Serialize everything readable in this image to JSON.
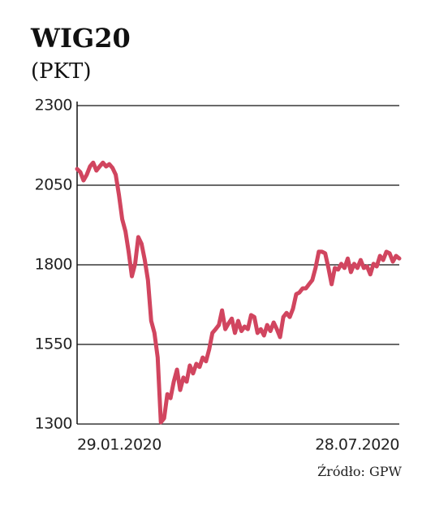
{
  "chart_data": {
    "type": "line",
    "title": "WIG20",
    "subtitle": "(PKT)",
    "source": "Źródło: GPW",
    "categories": [
      "29.01.2020",
      null,
      null,
      null,
      null,
      null,
      null,
      null,
      null,
      null,
      null,
      null,
      null,
      null,
      null,
      null,
      null,
      null,
      null,
      null,
      null,
      null,
      null,
      null,
      null,
      null,
      null,
      null,
      null,
      null,
      null,
      null,
      null,
      null,
      null,
      null,
      null,
      null,
      null,
      null,
      null,
      null,
      null,
      null,
      null,
      null,
      null,
      null,
      null,
      null,
      null,
      null,
      null,
      null,
      null,
      null,
      null,
      null,
      null,
      null,
      null,
      null,
      null,
      null,
      null,
      null,
      null,
      null,
      null,
      null,
      null,
      null,
      null,
      null,
      null,
      null,
      null,
      null,
      null,
      null,
      null,
      null,
      null,
      null,
      null,
      null,
      null,
      null,
      null,
      null,
      null,
      null,
      null,
      null,
      null,
      null,
      null,
      null,
      null,
      null,
      "28.07.2020"
    ],
    "values": [
      2101,
      2091,
      2065,
      2083,
      2109,
      2121,
      2096,
      2109,
      2121,
      2109,
      2116,
      2104,
      2083,
      2019,
      1943,
      1905,
      1841,
      1764,
      1803,
      1887,
      1866,
      1815,
      1752,
      1624,
      1586,
      1509,
      1305,
      1318,
      1394,
      1381,
      1433,
      1471,
      1407,
      1446,
      1433,
      1484,
      1459,
      1489,
      1479,
      1509,
      1497,
      1535,
      1586,
      1598,
      1611,
      1657,
      1598,
      1616,
      1631,
      1586,
      1624,
      1592,
      1606,
      1598,
      1642,
      1636,
      1586,
      1598,
      1578,
      1611,
      1592,
      1619,
      1598,
      1573,
      1636,
      1649,
      1636,
      1662,
      1708,
      1713,
      1726,
      1726,
      1739,
      1752,
      1790,
      1841,
      1841,
      1836,
      1790,
      1739,
      1790,
      1785,
      1803,
      1790,
      1820,
      1777,
      1803,
      1790,
      1815,
      1790,
      1795,
      1770,
      1803,
      1795,
      1828,
      1815,
      1841,
      1836,
      1810,
      1828,
      1820
    ],
    "color": "#d1455f",
    "ylim": [
      1300,
      2300
    ],
    "yticks": [
      1300,
      1550,
      1800,
      2050,
      2300
    ],
    "grid": true
  }
}
